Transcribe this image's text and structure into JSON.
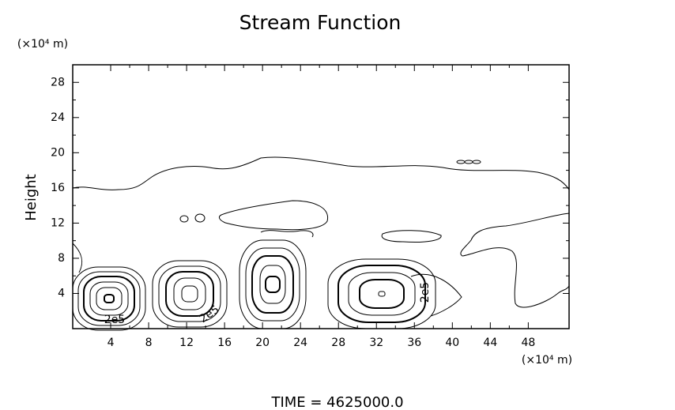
{
  "chart_data": {
    "type": "contour",
    "title": "Stream Function",
    "y_label": "Height",
    "x_unit": "(×10⁴ m)",
    "y_unit": "(×10⁴ m)",
    "xlim": [
      0,
      52.3
    ],
    "ylim": [
      0,
      30
    ],
    "xticks": [
      4,
      8,
      12,
      16,
      20,
      24,
      28,
      32,
      36,
      40,
      44,
      48
    ],
    "yticks": [
      4,
      8,
      12,
      16,
      20,
      24,
      28
    ],
    "contour_labels": [
      "2e5",
      "2e5",
      "2e5"
    ],
    "footer": "TIME = 4625000.0"
  }
}
